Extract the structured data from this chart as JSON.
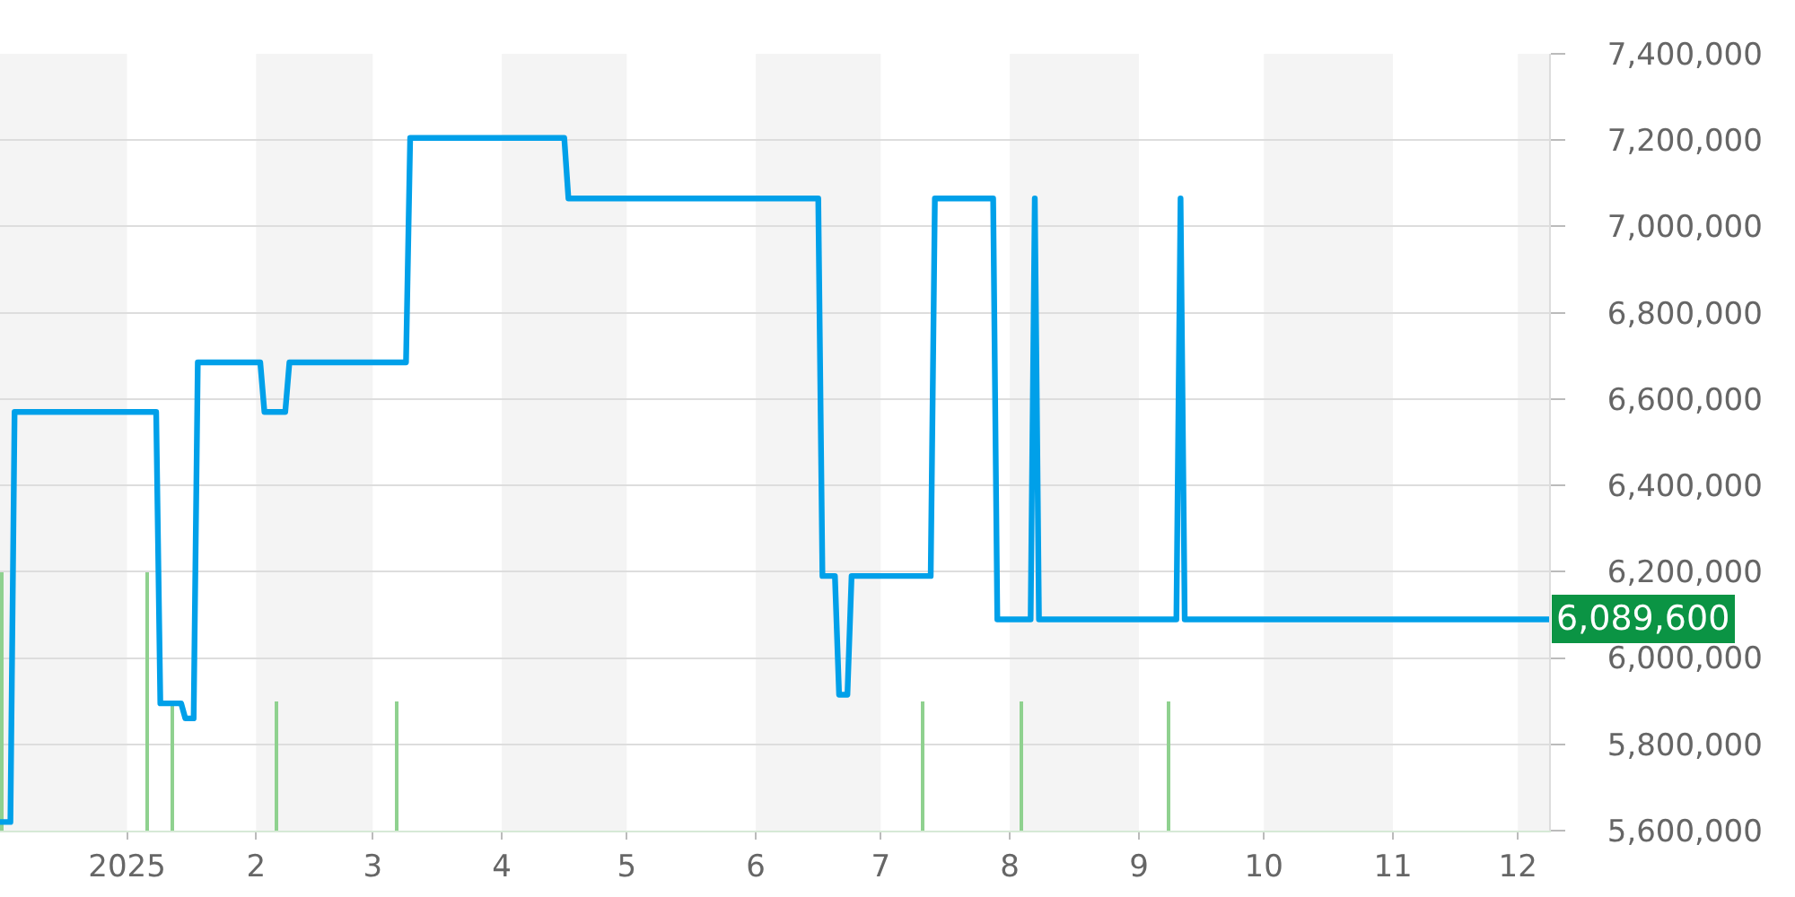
{
  "chart_data": {
    "type": "line",
    "xlim": [
      "2024-12-01T12:00",
      "2025-12-08T12:00"
    ],
    "xticks": [
      {
        "value": "2025-01-01",
        "label": "2025"
      },
      {
        "value": "2025-02-01",
        "label": "2"
      },
      {
        "value": "2025-03-01",
        "label": "3"
      },
      {
        "value": "2025-04-01",
        "label": "4"
      },
      {
        "value": "2025-05-01",
        "label": "5"
      },
      {
        "value": "2025-06-01",
        "label": "6"
      },
      {
        "value": "2025-07-01",
        "label": "7"
      },
      {
        "value": "2025-08-01",
        "label": "8"
      },
      {
        "value": "2025-09-01",
        "label": "9"
      },
      {
        "value": "2025-10-01",
        "label": "10"
      },
      {
        "value": "2025-11-01",
        "label": "11"
      },
      {
        "value": "2025-12-01",
        "label": "12"
      }
    ],
    "ylim": [
      5600000,
      7400000
    ],
    "yticks": [
      {
        "value": 5600000,
        "label": "5,600,000"
      },
      {
        "value": 5800000,
        "label": "5,800,000"
      },
      {
        "value": 6000000,
        "label": "6,000,000"
      },
      {
        "value": 6200000,
        "label": "6,200,000"
      },
      {
        "value": 6400000,
        "label": "6,400,000"
      },
      {
        "value": 6600000,
        "label": "6,600,000"
      },
      {
        "value": 6800000,
        "label": "6,800,000"
      },
      {
        "value": 7000000,
        "label": "7,000,000"
      },
      {
        "value": 7200000,
        "label": "7,200,000"
      },
      {
        "value": 7400000,
        "label": "7,400,000"
      }
    ],
    "grid": "y",
    "bands": [
      {
        "axis": "x",
        "from": "2024-12-01T12:00",
        "to": "2025-01-01",
        "color": "#f4f4f4"
      },
      {
        "axis": "x",
        "from": "2025-02-01",
        "to": "2025-03-01",
        "color": "#f4f4f4"
      },
      {
        "axis": "x",
        "from": "2025-04-01",
        "to": "2025-05-01",
        "color": "#f4f4f4"
      },
      {
        "axis": "x",
        "from": "2025-06-01",
        "to": "2025-07-01",
        "color": "#f4f4f4"
      },
      {
        "axis": "x",
        "from": "2025-08-01",
        "to": "2025-09-01",
        "color": "#f4f4f4"
      },
      {
        "axis": "x",
        "from": "2025-10-01",
        "to": "2025-11-01",
        "color": "#f4f4f4"
      },
      {
        "axis": "x",
        "from": "2025-12-01",
        "to": "2025-12-08T12:00",
        "color": "#f4f4f4"
      }
    ],
    "annotations": [
      {
        "text": "6,089,600",
        "x": "2025-12-08T12:00",
        "y": 6089600
      }
    ],
    "series": [
      {
        "type": "bar",
        "color": "#8fd18f",
        "x": [
          "2024-12-02",
          "2025-01-06",
          "2025-01-12",
          "2025-02-06",
          "2025-03-07",
          "2025-07-11",
          "2025-08-04",
          "2025-09-08"
        ],
        "base": [
          5600000,
          5600000,
          5600000,
          5600000,
          5600000,
          5600000,
          5600000,
          5600000
        ],
        "values": [
          600000,
          600000,
          300000,
          300000,
          300000,
          300000,
          300000,
          300000
        ]
      },
      {
        "color": "#00a0e9",
        "x": [
          "2024-12-01T12:00",
          "2024-12-04",
          "2024-12-05",
          "2025-01-08",
          "2025-01-09",
          "2025-01-14",
          "2025-01-15",
          "2025-01-17",
          "2025-01-18",
          "2025-02-02",
          "2025-02-03",
          "2025-02-08",
          "2025-02-09",
          "2025-03-09",
          "2025-03-10",
          "2025-04-16",
          "2025-04-17",
          "2025-06-16",
          "2025-06-17",
          "2025-06-20",
          "2025-06-21",
          "2025-06-23",
          "2025-06-24",
          "2025-07-13",
          "2025-07-14",
          "2025-07-28",
          "2025-07-29",
          "2025-08-06",
          "2025-08-07",
          "2025-08-08",
          "2025-09-10",
          "2025-09-11",
          "2025-09-12",
          "2025-12-08T12:00"
        ],
        "values": [
          5620000,
          5620000,
          6570000,
          6570000,
          5895000,
          5895000,
          5860000,
          5860000,
          6685000,
          6685000,
          6570000,
          6570000,
          6685000,
          6685000,
          7205000,
          7205000,
          7065000,
          7065000,
          6190000,
          6190000,
          5915000,
          5915000,
          6190000,
          6190000,
          7065000,
          7065000,
          6089600,
          6089600,
          7065000,
          6089600,
          6089600,
          7065000,
          6089600,
          6089600
        ]
      }
    ]
  }
}
